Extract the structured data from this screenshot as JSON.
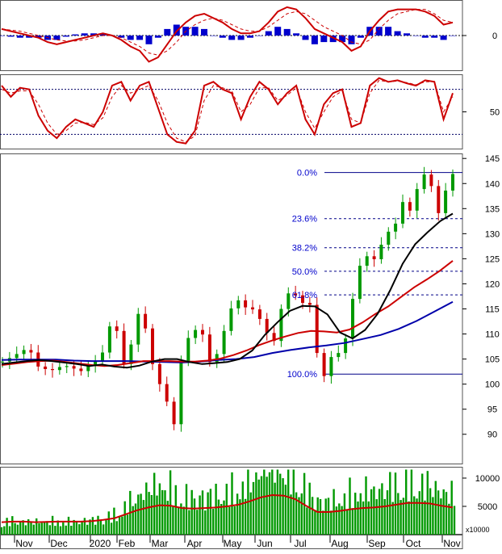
{
  "chart_data": [
    {
      "panel": "macd",
      "type": "line",
      "right_tick_labels": [
        "0"
      ],
      "series": [
        {
          "kind": "line",
          "color": "#cc0000",
          "values": [
            0.3,
            0.2,
            0.1,
            0.0,
            -0.1,
            -0.3,
            -0.4,
            -0.3,
            -0.2,
            -0.1,
            0.0,
            0.1,
            0.0,
            -0.2,
            -0.5,
            -0.7,
            -1.2,
            -1.0,
            -0.4,
            0.2,
            0.6,
            0.9,
            1.0,
            0.8,
            0.6,
            0.3,
            0.1,
            0.1,
            0.2,
            0.6,
            1.1,
            1.3,
            1.2,
            0.8,
            0.3,
            0.1,
            -0.1,
            -0.3,
            -0.7,
            -0.5,
            0.2,
            0.7,
            1.1,
            1.2,
            1.2,
            1.2,
            1.1,
            0.9,
            0.5,
            0.6
          ]
        },
        {
          "kind": "signal",
          "color": "#cc0000",
          "dashed": true,
          "values": [
            0.3,
            0.25,
            0.2,
            0.1,
            0.0,
            -0.1,
            -0.2,
            -0.25,
            -0.25,
            -0.2,
            -0.1,
            0.0,
            0.0,
            -0.1,
            -0.3,
            -0.5,
            -0.8,
            -0.9,
            -0.7,
            -0.3,
            0.2,
            0.5,
            0.7,
            0.8,
            0.7,
            0.5,
            0.3,
            0.2,
            0.2,
            0.4,
            0.7,
            1.0,
            1.1,
            1.0,
            0.7,
            0.4,
            0.2,
            0.0,
            -0.3,
            -0.4,
            -0.2,
            0.3,
            0.7,
            1.0,
            1.1,
            1.2,
            1.2,
            1.0,
            0.7,
            0.6
          ]
        },
        {
          "kind": "histogram",
          "color": "#0000cc",
          "values": [
            0.0,
            -0.05,
            -0.1,
            -0.1,
            -0.1,
            -0.2,
            -0.2,
            -0.05,
            0.05,
            0.1,
            0.1,
            0.1,
            0.0,
            -0.1,
            -0.2,
            -0.2,
            -0.4,
            -0.1,
            0.3,
            0.5,
            0.4,
            0.4,
            0.3,
            0.0,
            -0.1,
            -0.2,
            -0.2,
            -0.1,
            0.0,
            0.2,
            0.4,
            0.3,
            0.1,
            -0.2,
            -0.4,
            -0.3,
            -0.3,
            -0.3,
            -0.4,
            -0.1,
            0.4,
            0.4,
            0.4,
            0.2,
            0.1,
            0.0,
            -0.1,
            -0.1,
            -0.2,
            0.0
          ]
        }
      ]
    },
    {
      "panel": "stochastic",
      "type": "line",
      "right_tick_labels": [
        "50"
      ],
      "reference_lines": [
        80,
        20
      ],
      "series": [
        {
          "kind": "%K",
          "color": "#cc0000",
          "values": [
            85,
            70,
            82,
            80,
            45,
            25,
            15,
            30,
            40,
            35,
            30,
            50,
            85,
            90,
            65,
            85,
            90,
            55,
            20,
            10,
            8,
            25,
            85,
            90,
            80,
            75,
            40,
            70,
            90,
            80,
            60,
            75,
            85,
            40,
            20,
            60,
            75,
            80,
            30,
            35,
            85,
            95,
            90,
            92,
            88,
            85,
            92,
            90,
            40,
            75
          ]
        },
        {
          "kind": "%D",
          "color": "#cc0000",
          "dashed": true,
          "values": [
            80,
            75,
            78,
            78,
            60,
            35,
            20,
            25,
            35,
            36,
            33,
            42,
            70,
            85,
            75,
            80,
            85,
            65,
            35,
            15,
            10,
            18,
            65,
            85,
            82,
            78,
            50,
            60,
            82,
            82,
            65,
            72,
            82,
            50,
            28,
            50,
            70,
            78,
            40,
            35,
            75,
            92,
            90,
            91,
            89,
            86,
            90,
            90,
            50,
            70
          ]
        }
      ]
    },
    {
      "panel": "price",
      "type": "candlestick",
      "y_ticks": [
        90,
        95,
        100,
        105,
        110,
        115,
        120,
        125,
        130,
        135,
        140,
        145
      ],
      "ylim": [
        84,
        146
      ],
      "x_labels": [
        "Nov",
        "Dec",
        "2020",
        "Feb",
        "Mar",
        "Apr",
        "May",
        "Jun",
        "Jul",
        "Aug",
        "Sep",
        "Oct",
        "Nov"
      ],
      "fibonacci": [
        {
          "label": "0.0%",
          "price": 142.2
        },
        {
          "label": "23.6%",
          "price": 133.0
        },
        {
          "label": "38.2%",
          "price": 127.2
        },
        {
          "label": "50.0%",
          "price": 122.5
        },
        {
          "label": "61.8%",
          "price": 117.8
        },
        {
          "label": "100.0%",
          "price": 102.0
        }
      ],
      "closes": [
        104.5,
        105.2,
        106.0,
        106.8,
        106.3,
        103.5,
        103.0,
        102.8,
        103.4,
        103.6,
        103.1,
        102.6,
        103.8,
        104.6,
        106.3,
        111.5,
        110.6,
        104.0,
        107.9,
        114.0,
        111.1,
        104.0,
        100.0,
        96.5,
        92.0,
        104.5,
        109.2,
        110.8,
        109.9,
        104.4,
        106.0,
        110.6,
        115.1,
        116.7,
        115.3,
        114.9,
        113.0,
        110.2,
        108.6,
        115.0,
        118.1,
        117.7,
        116.2,
        115.8,
        106.2,
        101.6,
        105.4,
        106.2,
        109.1,
        117.0,
        123.6,
        125.5,
        124.9,
        127.8,
        130.4,
        132.0,
        136.3,
        134.6,
        138.9,
        141.8,
        139.5,
        134.1,
        138.6,
        141.9
      ],
      "moving_averages": [
        {
          "name": "MA20",
          "color": "#000000",
          "values": [
            104.0,
            104.3,
            104.6,
            104.8,
            104.6,
            104.3,
            104.0,
            103.6,
            103.9,
            103.5,
            103.3,
            103.7,
            104.5,
            105.0,
            105.0,
            104.4,
            104.0,
            104.2,
            104.4,
            105.0,
            106.7,
            109.8,
            112.3,
            114.6,
            115.6,
            115.5,
            113.9,
            110.3,
            109.1,
            110.8,
            114.0,
            118.7,
            124.0,
            127.9,
            130.3,
            132.5,
            134.0
          ]
        },
        {
          "name": "MA50",
          "color": "#cc0000",
          "values": [
            103.8,
            104.1,
            104.4,
            104.6,
            104.7,
            104.4,
            104.1,
            103.8,
            103.6,
            103.8,
            104.2,
            104.6,
            104.6,
            104.6,
            104.5,
            104.5,
            104.7,
            105.1,
            105.8,
            106.7,
            107.8,
            108.7,
            109.5,
            110.2,
            110.6,
            110.5,
            110.3,
            110.9,
            112.3,
            114.0,
            115.5,
            117.4,
            119.3,
            120.9,
            122.6,
            124.6
          ]
        },
        {
          "name": "MA100",
          "color": "#0000aa",
          "values": [
            104.8,
            104.9,
            104.9,
            104.9,
            104.7,
            104.6,
            104.6,
            104.6,
            104.5,
            104.4,
            104.3,
            104.5,
            104.8,
            105.0,
            105.4,
            106.2,
            106.8,
            107.3,
            107.7,
            108.2,
            109.0,
            109.8,
            111.0,
            112.6,
            114.5,
            116.4
          ]
        }
      ]
    },
    {
      "panel": "volume",
      "type": "bar",
      "y_ticks": [
        5000,
        10000
      ],
      "scale_label": "x10000",
      "ylim": [
        0,
        12000
      ],
      "volume_scale": [
        1.0,
        1.1,
        1.0,
        1.05,
        1.05,
        1.05,
        1.0,
        1.05,
        1.1,
        1.15,
        1.25,
        1.45,
        1.6,
        1.7,
        1.75,
        1.6,
        1.45,
        1.45,
        1.5,
        1.5,
        1.55,
        1.6,
        1.6,
        1.75,
        1.85,
        1.85,
        1.75,
        1.55,
        1.5,
        1.5,
        1.55,
        1.65,
        1.65,
        1.65,
        1.7,
        1.75,
        1.75,
        1.65,
        1.6,
        1.5,
        1.45
      ],
      "moving_average": {
        "color": "#cc0000",
        "values": [
          2200,
          2300,
          2300,
          2200,
          2250,
          2300,
          2300,
          2300,
          2400,
          2600,
          2900,
          3600,
          4300,
          4800,
          5200,
          5100,
          4700,
          4600,
          4700,
          4800,
          5000,
          5300,
          5900,
          6600,
          7000,
          6900,
          6300,
          5100,
          4000,
          4000,
          4200,
          4500,
          4700,
          4800,
          5000,
          5300,
          5600,
          5600,
          5500,
          5100,
          4800
        ]
      }
    }
  ]
}
